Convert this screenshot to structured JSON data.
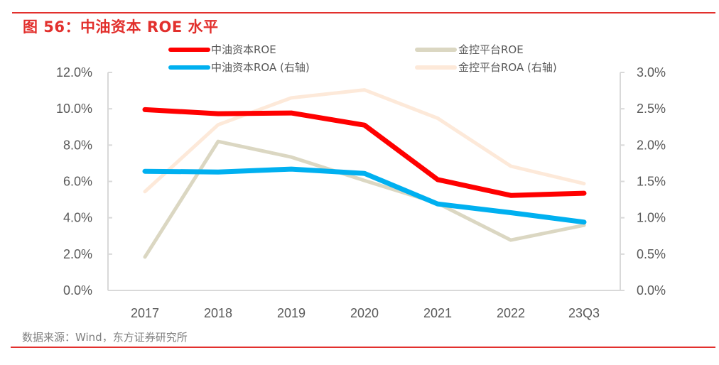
{
  "figure": {
    "title": "图 56：中油资本 ROE 水平",
    "source": "数据来源：Wind，东方证券研究所"
  },
  "colors": {
    "rule": "#e2302d",
    "axis": "#d9d9d9",
    "tick_text": "#595959"
  },
  "chart_data": {
    "type": "line",
    "title": "中油资本 ROE 水平",
    "xlabel": "",
    "ylabel": "",
    "categories": [
      "2017",
      "2018",
      "2019",
      "2020",
      "2021",
      "2022",
      "23Q3"
    ],
    "y_left": {
      "range": [
        0,
        12
      ],
      "ticks": [
        0,
        2,
        4,
        6,
        8,
        10,
        12
      ],
      "tick_labels": [
        "0.0%",
        "2.0%",
        "4.0%",
        "6.0%",
        "8.0%",
        "10.0%",
        "12.0%"
      ],
      "unit": "%"
    },
    "y_right": {
      "range": [
        0,
        3
      ],
      "ticks": [
        0,
        0.5,
        1,
        1.5,
        2,
        2.5,
        3
      ],
      "tick_labels": [
        "0.0%",
        "0.5%",
        "1.0%",
        "1.5%",
        "2.0%",
        "2.5%",
        "3.0%"
      ],
      "unit": "%"
    },
    "grid": false,
    "legend_position": "top",
    "series": [
      {
        "name": "中油资本ROE",
        "axis": "left",
        "color": "#ff0000",
        "values": [
          9.95,
          9.73,
          9.77,
          9.1,
          6.1,
          5.23,
          5.35
        ]
      },
      {
        "name": "金控平台ROE",
        "axis": "left",
        "color": "#dbd7c2",
        "values": [
          1.84,
          8.2,
          7.34,
          6.05,
          4.8,
          2.77,
          3.59
        ]
      },
      {
        "name": "中油资本ROA (右轴)",
        "axis": "right",
        "color": "#00b0f0",
        "values": [
          1.64,
          1.63,
          1.67,
          1.61,
          1.19,
          1.07,
          0.94
        ]
      },
      {
        "name": "金控平台ROA (右轴)",
        "axis": "right",
        "color": "#fde9d9",
        "values": [
          1.36,
          2.28,
          2.65,
          2.76,
          2.37,
          1.71,
          1.47
        ]
      }
    ]
  }
}
